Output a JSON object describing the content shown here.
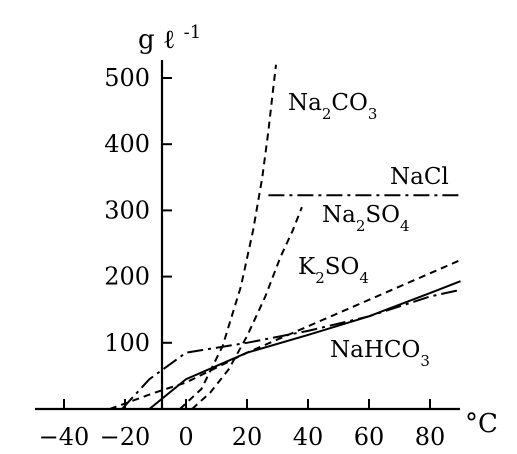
{
  "chart_data": {
    "type": "line",
    "title": "",
    "xlabel": "°C",
    "ylabel": "g ℓ-1",
    "y_unit_main": "g ℓ",
    "y_unit_sup": "-1",
    "x_unit": "°C",
    "x_ticks": [
      "−40",
      "−20",
      "0",
      "20",
      "40",
      "60",
      "80"
    ],
    "x_tick_values": [
      -40,
      -20,
      0,
      20,
      40,
      60,
      80
    ],
    "y_ticks": [
      "100",
      "200",
      "300",
      "400",
      "500"
    ],
    "y_tick_values": [
      100,
      200,
      300,
      400,
      500
    ],
    "xlim": [
      -46,
      90
    ],
    "ylim": [
      0,
      520
    ],
    "grid": false,
    "legend": "none",
    "series": [
      {
        "name": "Na2CO3",
        "label": [
          {
            "t": "Na",
            "sub": false
          },
          {
            "t": "2",
            "sub": true
          },
          {
            "t": "CO",
            "sub": false
          },
          {
            "t": "3",
            "sub": true
          }
        ],
        "style": "dashed",
        "x": [
          -2,
          5,
          12,
          18,
          22,
          25,
          27,
          28.5,
          29.5
        ],
        "y": [
          0,
          30,
          95,
          185,
          270,
          350,
          420,
          480,
          520
        ]
      },
      {
        "name": "NaCl",
        "label": [
          {
            "t": "NaCl",
            "sub": false
          }
        ],
        "style": "dashdot",
        "x": [
          -21,
          -12,
          0,
          20,
          40,
          60,
          80,
          90
        ],
        "y": [
          0,
          45,
          85,
          100,
          118,
          140,
          170,
          180
        ]
      },
      {
        "name": "NaCl (high)",
        "label": [],
        "style": "dashdot",
        "x": [
          27,
          90
        ],
        "y": [
          323,
          323
        ]
      },
      {
        "name": "Na2SO4",
        "label": [
          {
            "t": "Na",
            "sub": false
          },
          {
            "t": "2",
            "sub": true
          },
          {
            "t": "SO",
            "sub": false
          },
          {
            "t": "4",
            "sub": true
          }
        ],
        "style": "dashed",
        "x": [
          2,
          8,
          14,
          20,
          26,
          31,
          35,
          38
        ],
        "y": [
          0,
          25,
          60,
          110,
          170,
          230,
          270,
          305
        ]
      },
      {
        "name": "K2SO4",
        "label": [
          {
            "t": "K",
            "sub": false
          },
          {
            "t": "2",
            "sub": true
          },
          {
            "t": "SO",
            "sub": false
          },
          {
            "t": "4",
            "sub": true
          }
        ],
        "style": "dashed",
        "x": [
          -25,
          -10,
          0,
          20,
          40,
          60,
          80,
          90
        ],
        "y": [
          0,
          25,
          40,
          85,
          125,
          165,
          205,
          225
        ]
      },
      {
        "name": "NaHCO3",
        "label": [
          {
            "t": "NaHCO",
            "sub": false
          },
          {
            "t": "3",
            "sub": true
          }
        ],
        "style": "solid",
        "x": [
          -12,
          0,
          20,
          40,
          60,
          80,
          90
        ],
        "y": [
          0,
          45,
          85,
          112,
          140,
          175,
          193
        ]
      }
    ]
  }
}
